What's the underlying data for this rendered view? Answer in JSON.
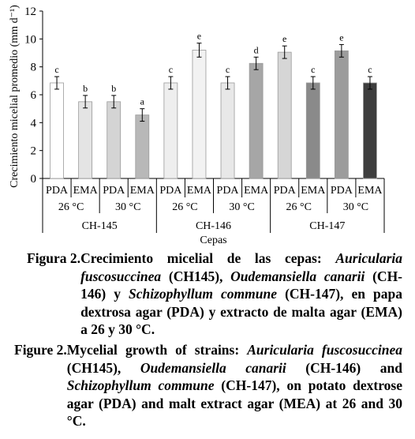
{
  "chart_data": {
    "type": "bar",
    "ylabel": "Crecimiento micelial promedio (mm d⁻¹)",
    "xlabel": "Cepas",
    "ylim": [
      0,
      12
    ],
    "yticks": [
      "0",
      "2",
      "4",
      "6",
      "8",
      "10",
      "12"
    ],
    "grid": false,
    "medium_labels": [
      "PDA",
      "EMA",
      "PDA",
      "EMA",
      "PDA",
      "EMA",
      "PDA",
      "EMA",
      "PDA",
      "EMA",
      "PDA",
      "EMA"
    ],
    "temperature_labels": [
      "26 °C",
      "30 °C",
      "26 °C",
      "30 °C",
      "26 °C",
      "30 °C"
    ],
    "strain_labels": [
      "CH-145",
      "CH-146",
      "CH-147"
    ],
    "values": [
      6.85,
      5.5,
      5.5,
      4.55,
      6.85,
      9.2,
      6.85,
      8.25,
      9.05,
      6.85,
      9.15,
      6.85
    ],
    "errors": [
      0.45,
      0.45,
      0.45,
      0.45,
      0.45,
      0.5,
      0.45,
      0.45,
      0.45,
      0.45,
      0.45,
      0.45
    ],
    "significance_letters": [
      "c",
      "b",
      "b",
      "a",
      "c",
      "e",
      "c",
      "d",
      "e",
      "c",
      "e",
      "c"
    ],
    "bar_colors": [
      "#ffffff",
      "#e4e4e4",
      "#d4d4d4",
      "#b8b8b8",
      "#eeeeee",
      "#f2f2f2",
      "#e8e8e8",
      "#a6a6a6",
      "#d6d6d6",
      "#8a8a8a",
      "#9c9c9c",
      "#3e3e3e"
    ]
  },
  "caption_es": {
    "label": "Figura 2.",
    "parts": [
      {
        "t": " Crecimiento micelial de las cepas: ",
        "i": false
      },
      {
        "t": "Auricularia fuscosuccinea",
        "i": true
      },
      {
        "t": " (CH145), ",
        "i": false
      },
      {
        "t": "Oudemansiella canarii",
        "i": true
      },
      {
        "t": " (CH-146) y ",
        "i": false
      },
      {
        "t": "Schizophyllum commune",
        "i": true
      },
      {
        "t": " (CH-147), en papa dextrosa agar (PDA) y extracto de malta agar (EMA) a 26 y 30 °C.",
        "i": false
      }
    ]
  },
  "caption_en": {
    "label": "Figure 2.",
    "parts": [
      {
        "t": "Mycelial growth of strains: ",
        "i": false
      },
      {
        "t": "Auricularia fuscosuccinea",
        "i": true
      },
      {
        "t": " (CH145), ",
        "i": false
      },
      {
        "t": "Oudemansiella canarii",
        "i": true
      },
      {
        "t": " (CH-146) and ",
        "i": false
      },
      {
        "t": "Schizophyllum commune",
        "i": true
      },
      {
        "t": " (CH-147), on potato dextrose agar (PDA) and malt extract agar (MEA) at 26 and 30 °C.",
        "i": false
      }
    ]
  }
}
